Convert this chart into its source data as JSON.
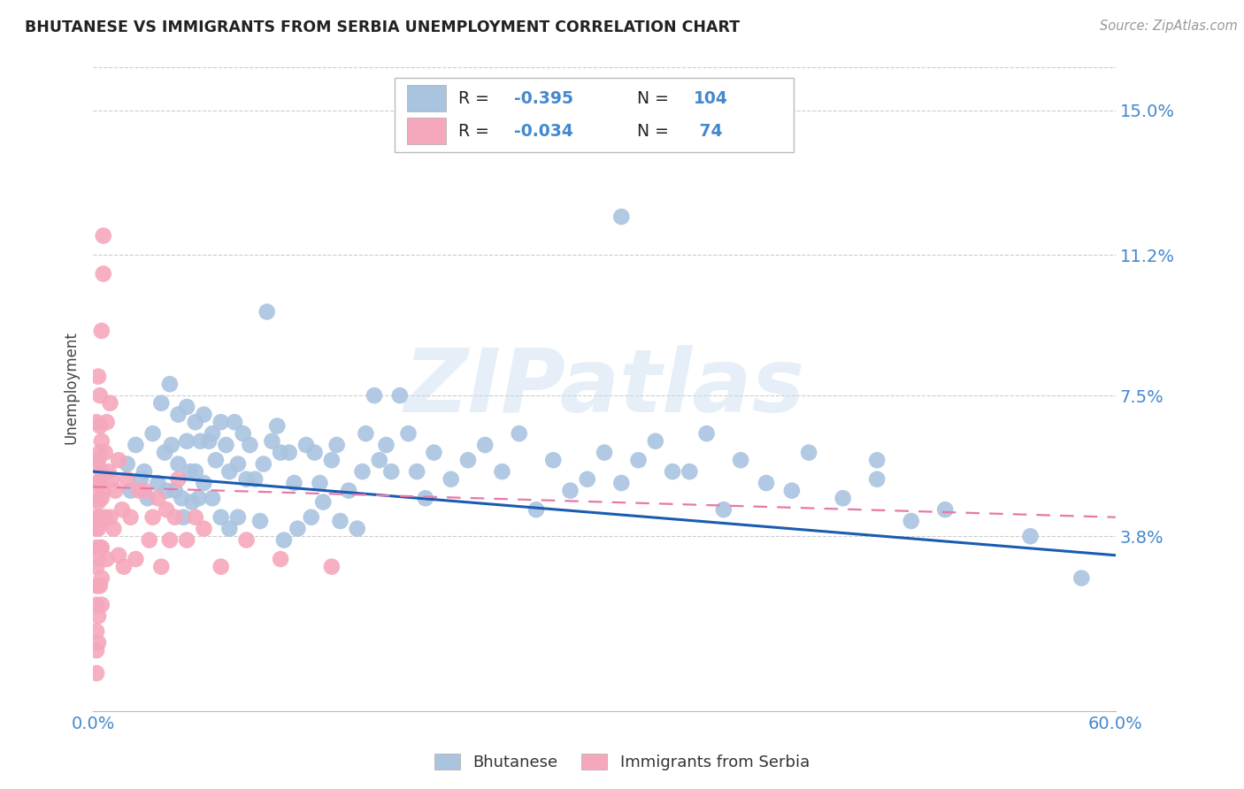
{
  "title": "BHUTANESE VS IMMIGRANTS FROM SERBIA UNEMPLOYMENT CORRELATION CHART",
  "source": "Source: ZipAtlas.com",
  "xmin": 0.0,
  "xmax": 0.6,
  "ymin": -0.008,
  "ymax": 0.162,
  "blue_R": -0.395,
  "blue_N": 104,
  "pink_R": -0.034,
  "pink_N": 74,
  "blue_color": "#aac4e0",
  "pink_color": "#f5a8bc",
  "blue_line_color": "#1a5cb0",
  "pink_line_color": "#e878a8",
  "grid_color": "#cccccc",
  "axis_label_color": "#4488cc",
  "title_color": "#222222",
  "watermark_text": "ZIPatlas",
  "legend_label_blue": "Bhutanese",
  "legend_label_pink": "Immigrants from Serbia",
  "ylabel_ticks": [
    0.0,
    0.038,
    0.075,
    0.112,
    0.15
  ],
  "ylabel_labels": [
    "",
    "3.8%",
    "7.5%",
    "11.2%",
    "15.0%"
  ],
  "blue_line_x0": 0.0,
  "blue_line_x1": 0.6,
  "blue_line_y0": 0.055,
  "blue_line_y1": 0.033,
  "pink_line_x0": 0.0,
  "pink_line_x1": 0.6,
  "pink_line_y0": 0.051,
  "pink_line_y1": 0.043,
  "blue_scatter_x": [
    0.02,
    0.022,
    0.025,
    0.028,
    0.03,
    0.032,
    0.035,
    0.038,
    0.04,
    0.042,
    0.043,
    0.045,
    0.046,
    0.048,
    0.05,
    0.05,
    0.052,
    0.053,
    0.055,
    0.055,
    0.057,
    0.058,
    0.06,
    0.06,
    0.062,
    0.063,
    0.065,
    0.065,
    0.068,
    0.07,
    0.07,
    0.072,
    0.075,
    0.075,
    0.078,
    0.08,
    0.08,
    0.083,
    0.085,
    0.085,
    0.088,
    0.09,
    0.092,
    0.095,
    0.098,
    0.1,
    0.102,
    0.105,
    0.108,
    0.11,
    0.112,
    0.115,
    0.118,
    0.12,
    0.125,
    0.128,
    0.13,
    0.133,
    0.135,
    0.14,
    0.143,
    0.145,
    0.15,
    0.155,
    0.158,
    0.16,
    0.165,
    0.168,
    0.172,
    0.175,
    0.18,
    0.185,
    0.19,
    0.195,
    0.2,
    0.21,
    0.22,
    0.23,
    0.24,
    0.25,
    0.26,
    0.27,
    0.28,
    0.29,
    0.3,
    0.31,
    0.32,
    0.33,
    0.34,
    0.35,
    0.36,
    0.37,
    0.38,
    0.395,
    0.41,
    0.42,
    0.44,
    0.46,
    0.48,
    0.5,
    0.31,
    0.46,
    0.55,
    0.58
  ],
  "blue_scatter_y": [
    0.057,
    0.05,
    0.062,
    0.053,
    0.055,
    0.048,
    0.065,
    0.052,
    0.073,
    0.06,
    0.05,
    0.078,
    0.062,
    0.05,
    0.07,
    0.057,
    0.048,
    0.043,
    0.072,
    0.063,
    0.055,
    0.047,
    0.068,
    0.055,
    0.048,
    0.063,
    0.07,
    0.052,
    0.063,
    0.065,
    0.048,
    0.058,
    0.068,
    0.043,
    0.062,
    0.055,
    0.04,
    0.068,
    0.057,
    0.043,
    0.065,
    0.053,
    0.062,
    0.053,
    0.042,
    0.057,
    0.097,
    0.063,
    0.067,
    0.06,
    0.037,
    0.06,
    0.052,
    0.04,
    0.062,
    0.043,
    0.06,
    0.052,
    0.047,
    0.058,
    0.062,
    0.042,
    0.05,
    0.04,
    0.055,
    0.065,
    0.075,
    0.058,
    0.062,
    0.055,
    0.075,
    0.065,
    0.055,
    0.048,
    0.06,
    0.053,
    0.058,
    0.062,
    0.055,
    0.065,
    0.045,
    0.058,
    0.05,
    0.053,
    0.06,
    0.052,
    0.058,
    0.063,
    0.055,
    0.055,
    0.065,
    0.045,
    0.058,
    0.052,
    0.05,
    0.06,
    0.048,
    0.053,
    0.042,
    0.045,
    0.122,
    0.058,
    0.038,
    0.027
  ],
  "pink_scatter_x": [
    0.002,
    0.002,
    0.002,
    0.002,
    0.002,
    0.002,
    0.002,
    0.002,
    0.002,
    0.002,
    0.002,
    0.002,
    0.002,
    0.003,
    0.003,
    0.003,
    0.003,
    0.003,
    0.003,
    0.003,
    0.003,
    0.003,
    0.004,
    0.004,
    0.004,
    0.004,
    0.004,
    0.004,
    0.004,
    0.005,
    0.005,
    0.005,
    0.005,
    0.005,
    0.005,
    0.005,
    0.005,
    0.006,
    0.006,
    0.006,
    0.007,
    0.007,
    0.008,
    0.008,
    0.009,
    0.01,
    0.01,
    0.011,
    0.012,
    0.013,
    0.015,
    0.015,
    0.017,
    0.018,
    0.02,
    0.022,
    0.025,
    0.027,
    0.03,
    0.033,
    0.035,
    0.038,
    0.04,
    0.043,
    0.045,
    0.048,
    0.05,
    0.055,
    0.06,
    0.065,
    0.075,
    0.09,
    0.11,
    0.14
  ],
  "pink_scatter_y": [
    0.057,
    0.052,
    0.048,
    0.043,
    0.04,
    0.035,
    0.03,
    0.025,
    0.02,
    0.013,
    0.008,
    0.002,
    0.068,
    0.058,
    0.052,
    0.047,
    0.04,
    0.032,
    0.025,
    0.017,
    0.01,
    0.08,
    0.075,
    0.067,
    0.06,
    0.052,
    0.043,
    0.035,
    0.025,
    0.055,
    0.048,
    0.042,
    0.035,
    0.027,
    0.02,
    0.063,
    0.092,
    0.117,
    0.107,
    0.05,
    0.06,
    0.043,
    0.068,
    0.032,
    0.055,
    0.073,
    0.043,
    0.053,
    0.04,
    0.05,
    0.058,
    0.033,
    0.045,
    0.03,
    0.053,
    0.043,
    0.032,
    0.05,
    0.05,
    0.037,
    0.043,
    0.048,
    0.03,
    0.045,
    0.037,
    0.043,
    0.053,
    0.037,
    0.043,
    0.04,
    0.03,
    0.037,
    0.032,
    0.03
  ]
}
